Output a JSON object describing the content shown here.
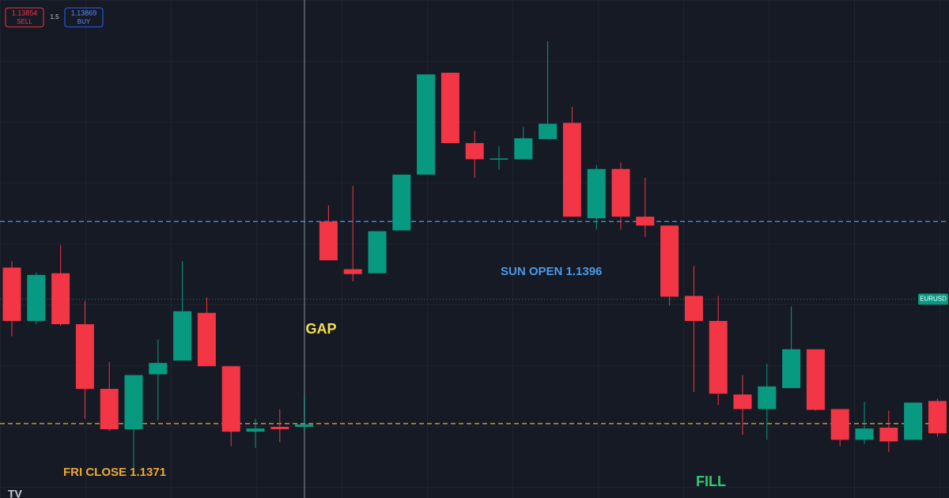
{
  "chart_data": {
    "type": "candlestick",
    "open": [
      1.13903,
      1.13837,
      1.13896,
      1.13833,
      1.13753,
      1.13703,
      1.13771,
      1.13788,
      1.13847,
      1.13781,
      1.137,
      1.13706,
      1.13706,
      1.1396,
      1.13901,
      1.13896,
      1.13949,
      1.14018,
      1.14144,
      1.14057,
      1.14037,
      1.14037,
      1.14062,
      1.14082,
      1.13964,
      1.14025,
      1.13966,
      1.13955,
      1.13868,
      1.13837,
      1.13746,
      1.13728,
      1.13754,
      1.13802,
      1.13728,
      1.1369,
      1.13705,
      1.1369,
      1.13738
    ],
    "high": [
      1.13911,
      1.13897,
      1.13931,
      1.13862,
      1.13786,
      1.1377,
      1.13814,
      1.13911,
      1.13866,
      1.13781,
      1.13716,
      1.13728,
      1.13745,
      1.1398,
      1.14004,
      1.13948,
      1.14018,
      1.14142,
      1.14144,
      1.14072,
      1.14053,
      1.14077,
      1.14183,
      1.14102,
      1.1403,
      1.14033,
      1.14014,
      1.13955,
      1.13905,
      1.13868,
      1.1377,
      1.13784,
      1.13855,
      1.13802,
      1.13728,
      1.13737,
      1.13726,
      1.13736,
      1.13741
    ],
    "low": [
      1.13818,
      1.13833,
      1.13831,
      1.13716,
      1.13701,
      1.13655,
      1.13714,
      1.13788,
      1.13781,
      1.13682,
      1.1368,
      1.13687,
      1.13701,
      1.13912,
      1.13886,
      1.13896,
      1.13949,
      1.14018,
      1.14057,
      1.14014,
      1.14024,
      1.14037,
      1.14062,
      1.13966,
      1.1395,
      1.1395,
      1.13941,
      1.13856,
      1.13749,
      1.13733,
      1.13696,
      1.1369,
      1.13754,
      1.13726,
      1.13682,
      1.13685,
      1.13675,
      1.1369,
      1.13694
    ],
    "close": [
      1.13837,
      1.13894,
      1.13833,
      1.13753,
      1.13703,
      1.1377,
      1.13785,
      1.13849,
      1.13781,
      1.137,
      1.13704,
      1.13703,
      1.13709,
      1.13912,
      1.13895,
      1.13948,
      1.14018,
      1.14142,
      1.14057,
      1.14037,
      1.14038,
      1.14063,
      1.14081,
      1.13966,
      1.14025,
      1.13966,
      1.13955,
      1.13867,
      1.13837,
      1.13747,
      1.13728,
      1.13756,
      1.13802,
      1.13727,
      1.1369,
      1.13704,
      1.13688,
      1.13736,
      1.13698
    ],
    "up_color": "#089981",
    "down_color": "#f23645",
    "ylim": [
      1.13618,
      1.14234
    ],
    "reference_lines": [
      {
        "value": 1.1396,
        "label": "SUN OPEN 1.1396",
        "color": "#4a9ae8"
      },
      {
        "value": 1.1371,
        "label": "FRI CLOSE 1.1371",
        "color": "#f0a830"
      }
    ],
    "last_price": {
      "value": 1.13864,
      "label": "EURUSD",
      "color": "#089981"
    },
    "annotations": [
      {
        "text": "GAP",
        "color": "#f5e04a"
      },
      {
        "text": "FILL",
        "color": "#2ecc71"
      }
    ]
  },
  "trade_widget": {
    "sell_price": "1.13854",
    "sell_label": "SELL",
    "spread": "1.5",
    "buy_price": "1.13869",
    "buy_label": "BUY"
  }
}
